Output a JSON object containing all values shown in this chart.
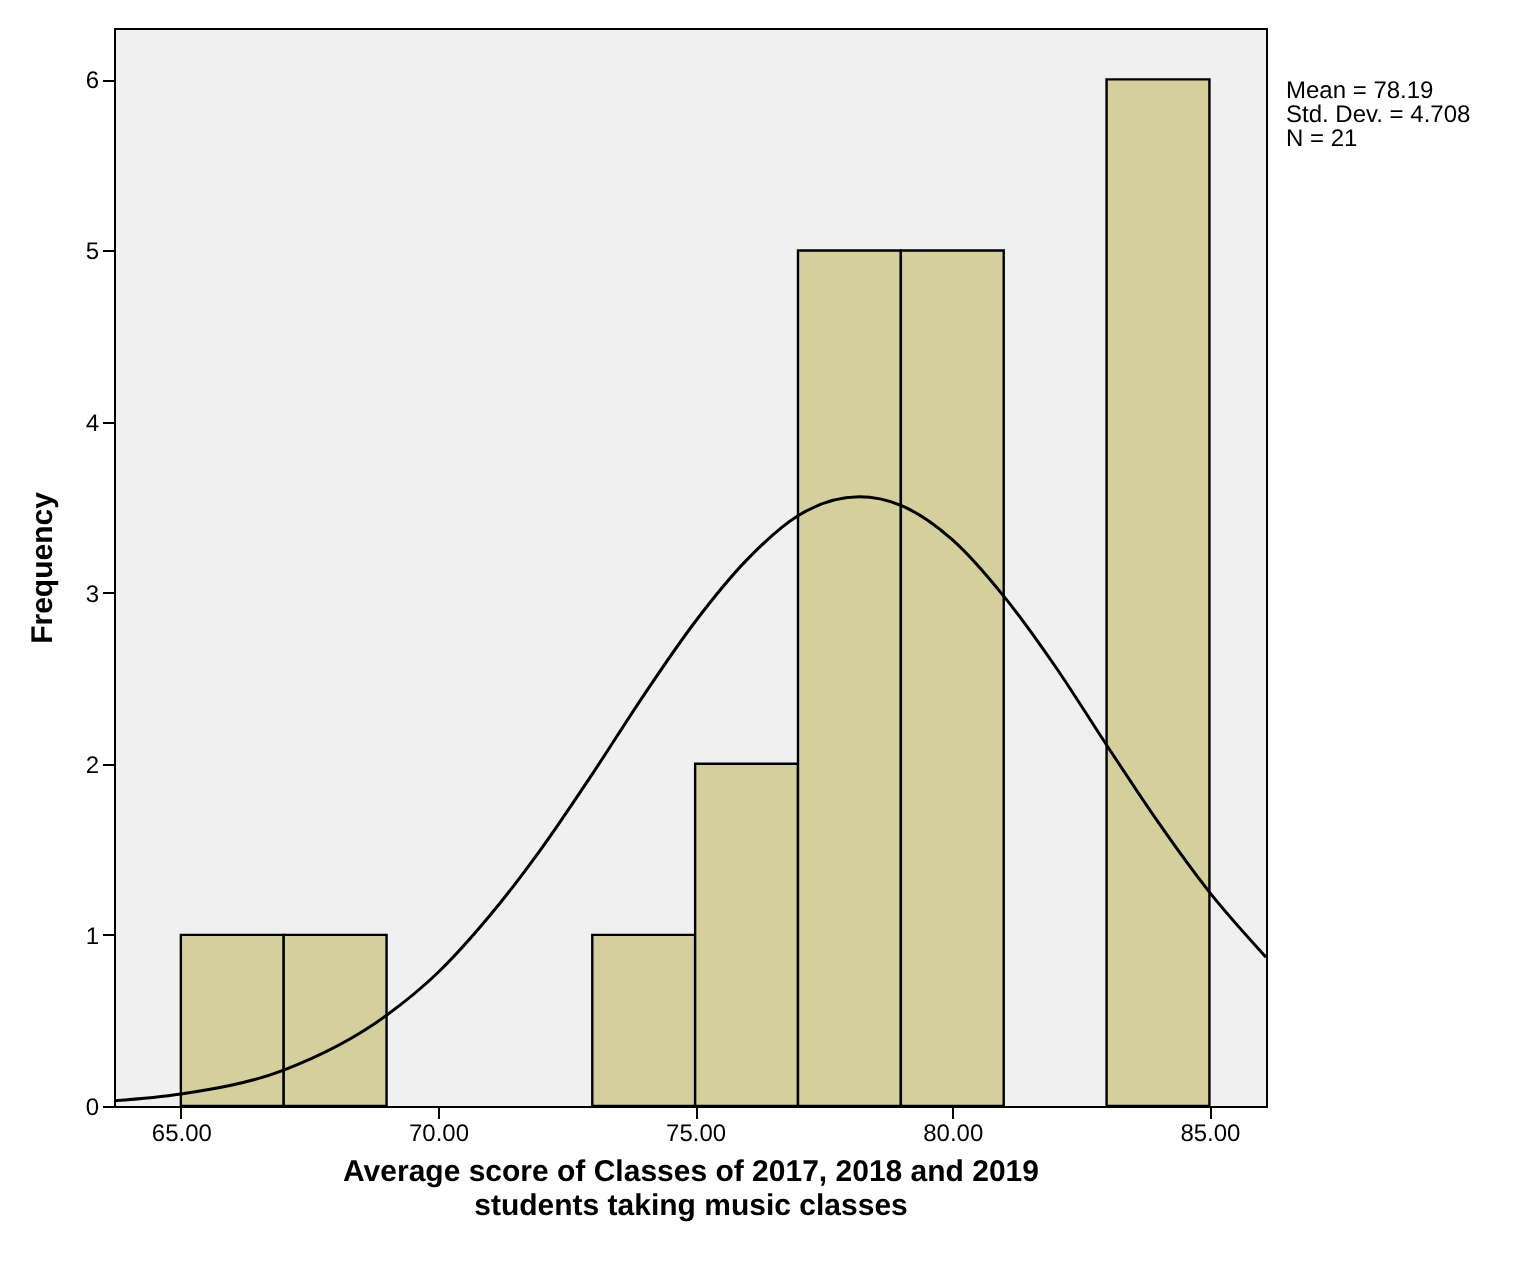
{
  "chart_data": {
    "type": "histogram",
    "xlabel": "Average score of Classes of 2017, 2018 and 2019\nstudents taking music classes",
    "ylabel": "Frequency",
    "bins": [
      65,
      67,
      69,
      71,
      73,
      75,
      77,
      79,
      81,
      83,
      85
    ],
    "series": [
      {
        "type": "histogram",
        "color": "#d4cf9b",
        "values": [
          1,
          1,
          0,
          0,
          1,
          2,
          5,
          5,
          0,
          6
        ]
      },
      {
        "type": "line",
        "color": "#000000",
        "x": [
          63.7,
          65,
          67,
          69,
          70,
          71,
          72,
          73,
          74,
          75,
          76,
          77,
          78.19,
          79,
          80,
          81,
          82,
          83,
          84,
          85,
          86.1
        ],
        "values": [
          0.03,
          0.07,
          0.21,
          0.53,
          0.78,
          1.11,
          1.5,
          1.94,
          2.4,
          2.83,
          3.19,
          3.45,
          3.56,
          3.51,
          3.31,
          2.98,
          2.57,
          2.11,
          1.66,
          1.25,
          0.87
        ]
      }
    ],
    "annotations": [
      "Mean = 78.19",
      "Std. Dev. = 4.708",
      "N = 21"
    ],
    "xlim": [
      63.7,
      86.1
    ],
    "ylim": [
      0,
      6.3
    ],
    "xticks": [
      {
        "value": 65,
        "label": "65.00"
      },
      {
        "value": 70,
        "label": "70.00"
      },
      {
        "value": 75,
        "label": "75.00"
      },
      {
        "value": 80,
        "label": "80.00"
      },
      {
        "value": 85,
        "label": "85.00"
      }
    ],
    "yticks": [
      0,
      1,
      2,
      3,
      4,
      5,
      6
    ],
    "grid": false,
    "marker": "none",
    "line_style": "solid"
  }
}
